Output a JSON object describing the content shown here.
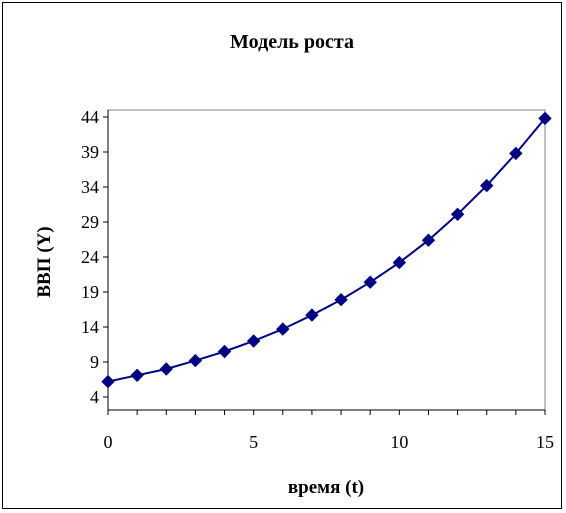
{
  "chart_data": {
    "type": "line",
    "title": "Модель роста",
    "xlabel": "время (t)",
    "ylabel": "ВВП (Y)",
    "xlim": [
      0,
      15
    ],
    "ylim": [
      4,
      44
    ],
    "x_ticks": [
      0,
      5,
      10,
      15
    ],
    "y_ticks": [
      4,
      9,
      14,
      19,
      24,
      29,
      34,
      39,
      44
    ],
    "x_tick_labels": [
      "0",
      "5",
      "10",
      "15"
    ],
    "y_tick_labels": [
      "4",
      "9",
      "14",
      "19",
      "24",
      "29",
      "34",
      "39",
      "44"
    ],
    "grid": false,
    "legend": "none",
    "series": [
      {
        "x": [
          0,
          1,
          2,
          3,
          4,
          5,
          6,
          7,
          8,
          9,
          10,
          11,
          12,
          13,
          14,
          15
        ],
        "y": [
          6.2,
          7.1,
          8.0,
          9.2,
          10.5,
          12.0,
          13.7,
          15.7,
          17.9,
          20.4,
          23.2,
          26.4,
          30.1,
          34.2,
          38.8,
          43.8
        ],
        "color": "#000080",
        "marker": "diamond"
      }
    ]
  }
}
